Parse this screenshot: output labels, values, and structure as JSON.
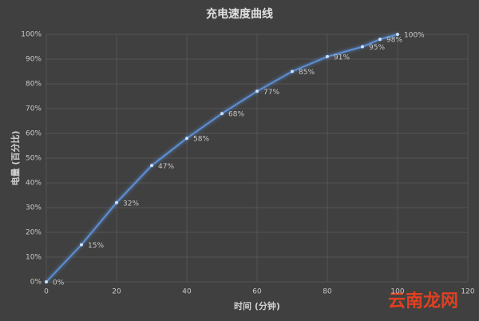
{
  "chart_data": {
    "type": "line",
    "title": "充电速度曲线",
    "x_label": "时间 (分钟)",
    "y_label": "电量 (百分比)",
    "x": [
      0,
      10,
      20,
      30,
      40,
      50,
      60,
      70,
      80,
      90,
      95,
      100
    ],
    "series": [
      {
        "name": "电量",
        "color": "#5b8fd6",
        "values": [
          0,
          15,
          32,
          47,
          58,
          68,
          77,
          85,
          91,
          95,
          98,
          100
        ],
        "value_labels": [
          "0%",
          "15%",
          "32%",
          "47%",
          "58%",
          "68%",
          "77%",
          "85%",
          "91%",
          "95%",
          "98%",
          "100%"
        ]
      }
    ],
    "xlim": [
      0,
      120
    ],
    "xticks": [
      0,
      20,
      40,
      60,
      80,
      100,
      120
    ],
    "ylim": [
      0,
      100
    ],
    "yticks": [
      {
        "value": 0,
        "label": "0%"
      },
      {
        "value": 10,
        "label": "10%"
      },
      {
        "value": 20,
        "label": "20%"
      },
      {
        "value": 30,
        "label": "30%"
      },
      {
        "value": 40,
        "label": "40%"
      },
      {
        "value": 50,
        "label": "50%"
      },
      {
        "value": 60,
        "label": "60%"
      },
      {
        "value": 70,
        "label": "70%"
      },
      {
        "value": 80,
        "label": "80%"
      },
      {
        "value": 90,
        "label": "90%"
      },
      {
        "value": 100,
        "label": "100%"
      }
    ],
    "grid": true,
    "watermark": "云南龙网"
  }
}
